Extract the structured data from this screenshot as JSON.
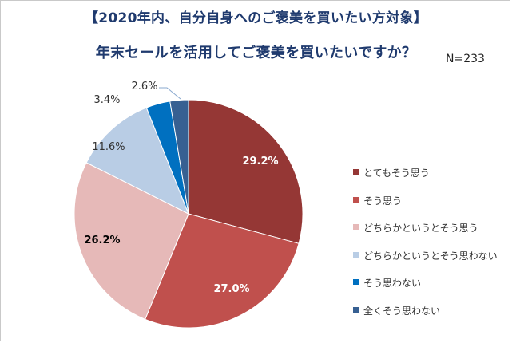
{
  "header": {
    "title_line1": "【2020年内、自分自身へのご褒美を買いたい方対象】",
    "title_line2": "年末セールを活用してご褒美を買いたいですか？",
    "sample_size": "N=233"
  },
  "chart_data": {
    "type": "pie",
    "title": "年末セールを活用してご褒美を買いたいですか？",
    "start_angle_deg": 0,
    "direction": "clockwise",
    "legend_position": "right",
    "slices": [
      {
        "name": "とてもそう思う",
        "value": 29.2,
        "label": "29.2%",
        "color": "#953735",
        "label_color": "#ffffff",
        "label_bold": true
      },
      {
        "name": "そう思う",
        "value": 27.0,
        "label": "27.0%",
        "color": "#c0504d",
        "label_color": "#ffffff",
        "label_bold": true
      },
      {
        "name": "どちらかというとそう思う",
        "value": 26.2,
        "label": "26.2%",
        "color": "#e6b9b8",
        "label_color": "#000000",
        "label_bold": true
      },
      {
        "name": "どちらかというとそう思わない",
        "value": 11.6,
        "label": "11.6%",
        "color": "#b9cde5",
        "label_color": "#333333",
        "label_bold": false
      },
      {
        "name": "そう思わない",
        "value": 3.4,
        "label": "3.4%",
        "color": "#0070c0",
        "label_color": "#333333",
        "label_bold": false
      },
      {
        "name": "全くそう思わない",
        "value": 2.6,
        "label": "2.6%",
        "color": "#376092",
        "label_color": "#333333",
        "label_bold": false
      }
    ]
  }
}
